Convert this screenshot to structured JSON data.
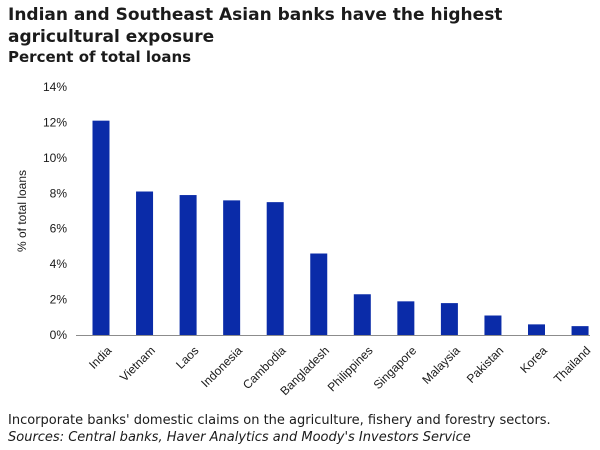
{
  "chart_data": {
    "type": "bar",
    "title": "Indian and Southeast Asian banks have the highest agricultural exposure",
    "subtitle": "Percent of total loans",
    "xlabel": "",
    "ylabel": "% of total loans",
    "categories": [
      "India",
      "Vietnam",
      "Laos",
      "Indonesia",
      "Cambodia",
      "Bangladesh",
      "Philippines",
      "Singapore",
      "Malaysia",
      "Pakistan",
      "Korea",
      "Thailand"
    ],
    "values": [
      12.1,
      8.1,
      7.9,
      7.6,
      7.5,
      4.6,
      2.3,
      1.9,
      1.8,
      1.1,
      0.6,
      0.5
    ],
    "ylim": [
      0,
      14
    ],
    "yticks": [
      0,
      2,
      4,
      6,
      8,
      10,
      12,
      14
    ],
    "ytick_labels": [
      "0%",
      "2%",
      "4%",
      "6%",
      "8%",
      "10%",
      "12%",
      "14%"
    ],
    "grid": false,
    "bar_color": "#0a2ba8"
  },
  "footnote": {
    "note": "Incorporate banks' domestic claims on the agriculture, fishery and forestry sectors.",
    "source": "Sources: Central banks, Haver Analytics and Moody's Investors Service"
  }
}
